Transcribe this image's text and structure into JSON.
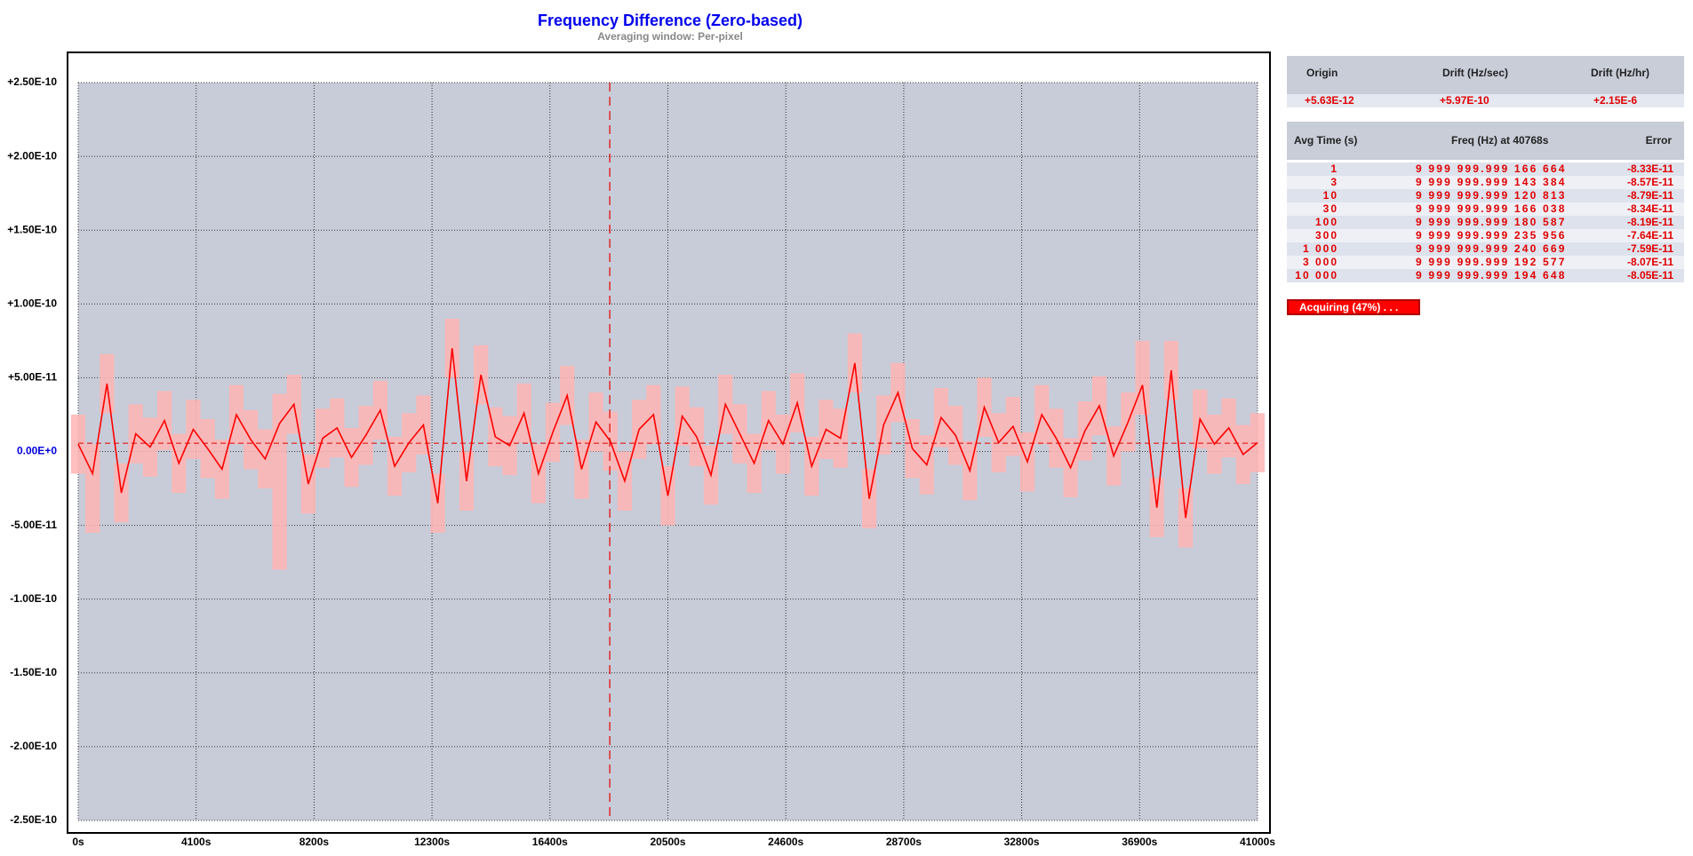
{
  "chart_data": {
    "type": "line",
    "title": "Frequency Difference (Zero-based)",
    "subtitle": "Averaging window: Per-pixel",
    "xlim": [
      0,
      41000
    ],
    "ylim": [
      -2.5e-10,
      2.5e-10
    ],
    "xticks": [
      {
        "value": 0,
        "label": "0s"
      },
      {
        "value": 4100,
        "label": "4100s"
      },
      {
        "value": 8200,
        "label": "8200s"
      },
      {
        "value": 12300,
        "label": "12300s"
      },
      {
        "value": 16400,
        "label": "16400s"
      },
      {
        "value": 20500,
        "label": "20500s"
      },
      {
        "value": 24600,
        "label": "24600s"
      },
      {
        "value": 28700,
        "label": "28700s"
      },
      {
        "value": 32800,
        "label": "32800s"
      },
      {
        "value": 36900,
        "label": "36900s"
      },
      {
        "value": 41000,
        "label": "41000s"
      }
    ],
    "yticks": [
      {
        "value": 2.5e-10,
        "label": "+2.50E-10"
      },
      {
        "value": 2e-10,
        "label": "+2.00E-10"
      },
      {
        "value": 1.5e-10,
        "label": "+1.50E-10"
      },
      {
        "value": 1e-10,
        "label": "+1.00E-10"
      },
      {
        "value": 5e-11,
        "label": "+5.00E-11"
      },
      {
        "value": 0,
        "label": "0.00E+0"
      },
      {
        "value": -5e-11,
        "label": "-5.00E-11"
      },
      {
        "value": -1e-10,
        "label": "-1.00E-10"
      },
      {
        "value": -1.5e-10,
        "label": "-1.50E-10"
      },
      {
        "value": -2e-10,
        "label": "-2.00E-10"
      },
      {
        "value": -2.5e-10,
        "label": "-2.50E-10"
      }
    ],
    "grid": true,
    "background": "#c8ccd8",
    "cursor_x": 18480,
    "cursor_color": "#e00000",
    "origin_line": 5.63e-12,
    "x": [
      0,
      500,
      1000,
      1500,
      2000,
      2500,
      3000,
      3500,
      4000,
      4500,
      5000,
      5500,
      6000,
      6500,
      7000,
      7500,
      8000,
      8500,
      9000,
      9500,
      10000,
      10500,
      11000,
      11500,
      12000,
      12500,
      13000,
      13500,
      14000,
      14500,
      15000,
      15500,
      16000,
      16500,
      17000,
      17500,
      18000,
      18500,
      19000,
      19500,
      20000,
      20500,
      21000,
      21500,
      22000,
      22500,
      23000,
      23500,
      24000,
      24500,
      25000,
      25500,
      26000,
      26500,
      27000,
      27500,
      28000,
      28500,
      29000,
      29500,
      30000,
      30500,
      31000,
      31500,
      32000,
      32500,
      33000,
      33500,
      34000,
      34500,
      35000,
      35500,
      36000,
      36500,
      37000,
      37500,
      38000,
      38500,
      39000,
      39500,
      40000,
      40500,
      41000
    ],
    "series": [
      {
        "color": "#ff0000",
        "band_color": "#ffb4b4",
        "values": [
          5e-12,
          -1.5e-11,
          4.6e-11,
          -2.8e-11,
          1.2e-11,
          3e-12,
          2.1e-11,
          -8e-12,
          1.5e-11,
          2e-12,
          -1.2e-11,
          2.5e-11,
          8e-12,
          -5e-12,
          1.9e-11,
          3.2e-11,
          -2.2e-11,
          9e-12,
          1.6e-11,
          -4e-12,
          1.1e-11,
          2.8e-11,
          -1e-11,
          6e-12,
          1.8e-11,
          -3.5e-11,
          7e-11,
          -2e-11,
          5.2e-11,
          1e-11,
          4e-12,
          2.6e-11,
          -1.5e-11,
          1.3e-11,
          3.8e-11,
          -1.2e-11,
          2e-11,
          7e-12,
          -2e-11,
          1.5e-11,
          2.5e-11,
          -3e-11,
          2.4e-11,
          1e-11,
          -1.6e-11,
          3.2e-11,
          1.2e-11,
          -8e-12,
          2.1e-11,
          5e-12,
          3.3e-11,
          -1e-11,
          1.5e-11,
          9e-12,
          6e-11,
          -3.2e-11,
          1.8e-11,
          4e-11,
          2e-12,
          -9e-12,
          2.3e-11,
          1.1e-11,
          -1.3e-11,
          3e-11,
          6e-12,
          1.7e-11,
          -7e-12,
          2.5e-11,
          9e-12,
          -1.1e-11,
          1.4e-11,
          3.1e-11,
          -3e-12,
          2e-11,
          4.5e-11,
          -3.8e-11,
          5.5e-11,
          -4.5e-11,
          2.2e-11,
          5e-12,
          1.6e-11,
          -2e-12,
          6e-12
        ],
        "upper": [
          2.5e-11,
          5e-12,
          6.6e-11,
          -8e-12,
          3.2e-11,
          2.3e-11,
          4.1e-11,
          1.2e-11,
          3.5e-11,
          2.2e-11,
          8e-12,
          4.5e-11,
          2.8e-11,
          1.5e-11,
          3.9e-11,
          5.2e-11,
          -2e-12,
          2.9e-11,
          3.6e-11,
          1.6e-11,
          3.1e-11,
          4.8e-11,
          1e-11,
          2.6e-11,
          3.8e-11,
          -1.5e-11,
          9e-11,
          0.0,
          7.2e-11,
          3e-11,
          2.4e-11,
          4.6e-11,
          5e-12,
          3.3e-11,
          5.8e-11,
          8e-12,
          4e-11,
          2.7e-11,
          0.0,
          3.5e-11,
          4.5e-11,
          -1e-11,
          4.4e-11,
          3e-11,
          4e-12,
          5.2e-11,
          3.2e-11,
          1.2e-11,
          4.1e-11,
          2.5e-11,
          5.3e-11,
          1e-11,
          3.5e-11,
          2.9e-11,
          8e-11,
          -1.2e-11,
          3.8e-11,
          6e-11,
          2.2e-11,
          1.1e-11,
          4.3e-11,
          3.1e-11,
          7e-12,
          5e-11,
          2.6e-11,
          3.7e-11,
          1.3e-11,
          4.5e-11,
          2.9e-11,
          9e-12,
          3.4e-11,
          5.1e-11,
          1.7e-11,
          4e-11,
          7.5e-11,
          -1.8e-11,
          7.5e-11,
          -2.5e-11,
          4.2e-11,
          2.5e-11,
          3.6e-11,
          1.8e-11,
          2.6e-11
        ],
        "lower": [
          -1.5e-11,
          -5.5e-11,
          2.6e-11,
          -4.8e-11,
          -8e-12,
          -1.7e-11,
          1e-12,
          -2.8e-11,
          -5e-12,
          -1.8e-11,
          -3.2e-11,
          5e-12,
          -1.2e-11,
          -2.5e-11,
          -8e-11,
          1.2e-11,
          -4.2e-11,
          -1.1e-11,
          -4e-12,
          -2.4e-11,
          -9e-12,
          8e-12,
          -3e-11,
          -1.4e-11,
          -2e-12,
          -5.5e-11,
          5e-11,
          -4e-11,
          3.2e-11,
          -1e-11,
          -1.6e-11,
          6e-12,
          -3.5e-11,
          -7e-12,
          1.8e-11,
          -3.2e-11,
          0.0,
          -1.3e-11,
          -4e-11,
          -5e-12,
          5e-12,
          -5e-11,
          4e-12,
          -1e-11,
          -3.6e-11,
          1.2e-11,
          -8e-12,
          -2.8e-11,
          1e-12,
          -1.5e-11,
          1.3e-11,
          -3e-11,
          -5e-12,
          -1.1e-11,
          4e-11,
          -5.2e-11,
          -2e-12,
          2e-11,
          -1.8e-11,
          -2.9e-11,
          3e-12,
          -9e-12,
          -3.3e-11,
          1e-11,
          -1.4e-11,
          -3e-12,
          -2.7e-11,
          5e-12,
          -1.1e-11,
          -3.1e-11,
          -6e-12,
          1.1e-11,
          -2.3e-11,
          0.0,
          2.5e-11,
          -5.8e-11,
          3.5e-11,
          -6.5e-11,
          2e-12,
          -1.5e-11,
          -4e-12,
          -2.2e-11,
          -1.4e-11
        ]
      }
    ]
  },
  "drift_table": {
    "headers": [
      "Origin",
      "Drift (Hz/sec)",
      "Drift (Hz/hr)"
    ],
    "row": [
      "+5.63E-12",
      "+5.97E-10",
      "+2.15E-6"
    ]
  },
  "avg_table": {
    "headers": [
      "Avg Time (s)",
      "Freq (Hz) at 40768s",
      "Error"
    ],
    "rows": [
      [
        "1",
        "9 999 999.999 166 664",
        "-8.33E-11"
      ],
      [
        "3",
        "9 999 999.999 143 384",
        "-8.57E-11"
      ],
      [
        "10",
        "9 999 999.999 120 813",
        "-8.79E-11"
      ],
      [
        "30",
        "9 999 999.999 166 038",
        "-8.34E-11"
      ],
      [
        "100",
        "9 999 999.999 180 587",
        "-8.19E-11"
      ],
      [
        "300",
        "9 999 999.999 235 956",
        "-7.64E-11"
      ],
      [
        "1 000",
        "9 999 999.999 240 669",
        "-7.59E-11"
      ],
      [
        "3 000",
        "9 999 999.999 192 577",
        "-8.07E-11"
      ],
      [
        "10 000",
        "9 999 999.999 194 648",
        "-8.05E-11"
      ]
    ]
  },
  "status": "Acquiring (47%) . . ."
}
